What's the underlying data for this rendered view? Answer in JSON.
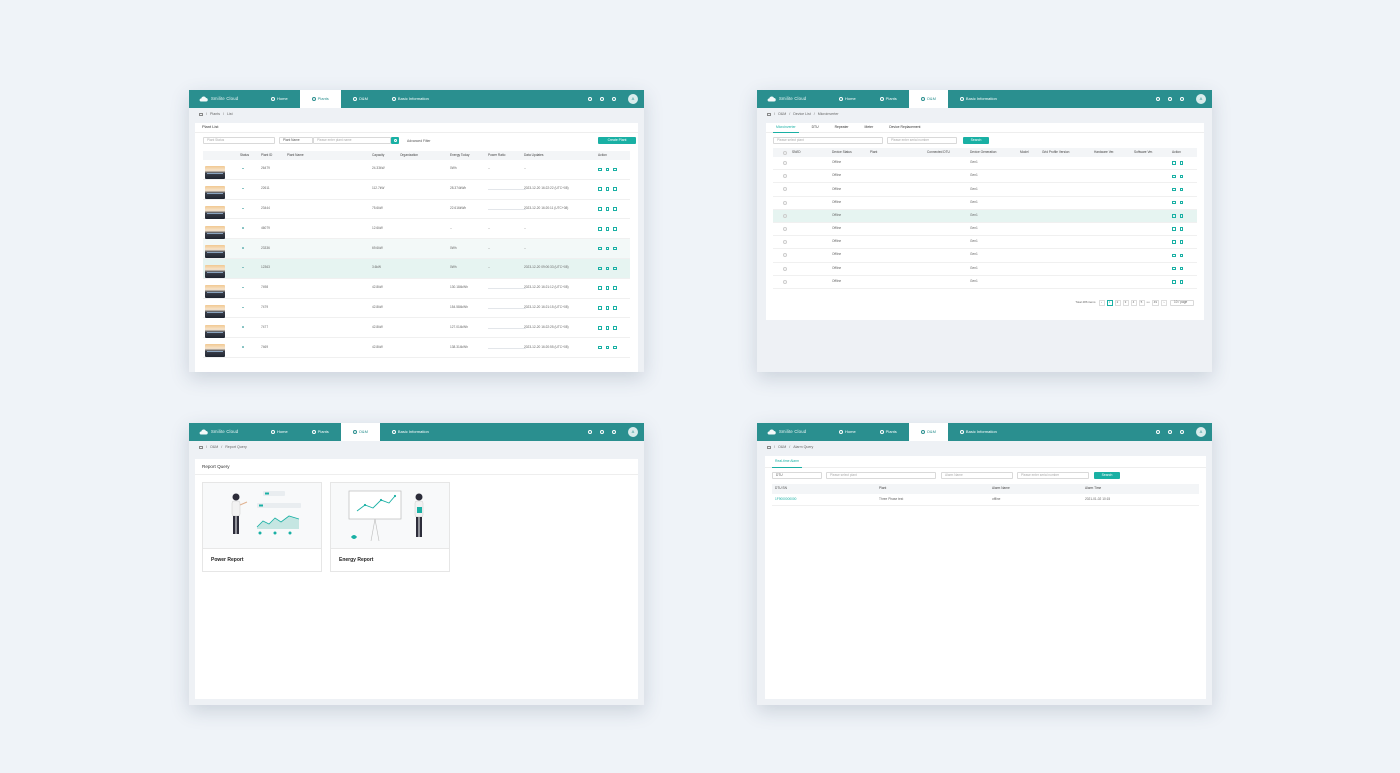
{
  "brand": {
    "name": "Smilite Cloud",
    "accent": "#2a8f8f",
    "button": "#19b0a4"
  },
  "nav": {
    "home": "Home",
    "plants": "Plants",
    "om": "O&M",
    "basic_info": "Basic Information",
    "avatar": "A"
  },
  "screen1": {
    "breadcrumb": [
      "Plants",
      "List"
    ],
    "title": "Plant List",
    "filter_status_placeholder": "Plant Status",
    "filter_field": "Plant Name",
    "search_placeholder": "Please enter plant name",
    "advanced_filter": "Advanced Filter",
    "create_button": "Create Plant",
    "columns": [
      "Status",
      "Plant ID",
      "Plant Name",
      "Capacity",
      "Organization",
      "Energy Today",
      "Power Ratio",
      "Data Updates",
      "Action"
    ],
    "rows": [
      {
        "id": "26479",
        "capacity": "24.33kW",
        "energy": "0Wh",
        "ratio": "--",
        "updates": "--"
      },
      {
        "id": "22611",
        "capacity": "112.7kW",
        "energy": "28.374kWh",
        "ratio": "",
        "updates": "2023-12-20 16:22:22 (UTC+08)"
      },
      {
        "id": "23444",
        "capacity": "75.6kW",
        "energy": "22.616kWh",
        "ratio": "",
        "updates": "2023-12-20 16:20:11 (UTC+08)"
      },
      {
        "id": "46079",
        "capacity": "12.6kW",
        "energy": "--",
        "ratio": "--",
        "updates": "--"
      },
      {
        "id": "23336",
        "capacity": "69.6kW",
        "energy": "0Wh",
        "ratio": "--",
        "updates": "--"
      },
      {
        "id": "12363",
        "capacity": "3.6kW",
        "energy": "0Wh",
        "ratio": "--",
        "updates": "2023-12-20 09:00:33 (UTC+08)"
      },
      {
        "id": "7498",
        "capacity": "42.8kW",
        "energy": "130.184kWh",
        "ratio": "",
        "updates": "2023-12-20 16:21:12 (UTC+08)"
      },
      {
        "id": "7479",
        "capacity": "42.8kW",
        "energy": "154.584kWh",
        "ratio": "",
        "updates": "2023-12-20 16:21:15 (UTC+08)"
      },
      {
        "id": "7477",
        "capacity": "42.8kW",
        "energy": "127.014kWh",
        "ratio": "",
        "updates": "2023-12-20 16:22:25 (UTC+08)"
      },
      {
        "id": "7469",
        "capacity": "42.8kW",
        "energy": "138.314kWh",
        "ratio": "",
        "updates": "2023-12-20 16:20:55 (UTC+08)"
      }
    ]
  },
  "screen2": {
    "breadcrumb": [
      "O&M",
      "Device List",
      "Microinverter"
    ],
    "tabs": [
      "Microinverter",
      "DTU",
      "Repeater",
      "Meter",
      "Device Replacement"
    ],
    "plant_placeholder": "Please select plant",
    "serial_placeholder": "Please enter serial number",
    "search": "Search",
    "columns": [
      "SN/ID",
      "Device Status",
      "Plant",
      "Connected DTU",
      "Device Generation",
      "Model",
      "Grid Profile Version",
      "Hardware Ver.",
      "Software Ver.",
      "Action"
    ],
    "status": "Offline",
    "generation": "Gen1",
    "row_count": 10,
    "total": "Total 486 items",
    "pages": [
      "1",
      "2",
      "3",
      "4",
      "5",
      "•••",
      "49"
    ],
    "page_size": "10 / page"
  },
  "screen3": {
    "breadcrumb": [
      "O&M",
      "Report Query"
    ],
    "title": "Report Query",
    "cards": [
      "Power Report",
      "Energy Report"
    ]
  },
  "screen4": {
    "breadcrumb": [
      "O&M",
      "Alarm Query"
    ],
    "tab": "Real-time Alarm",
    "filter_type": "DTU",
    "plant_placeholder": "Please select plant",
    "alarm_placeholder": "Alarm Name",
    "serial_placeholder": "Please enter serial number",
    "search": "Search",
    "columns": [
      "DTU SN",
      "Plant",
      "Alarm Name",
      "Alarm Time"
    ],
    "rows": [
      {
        "sn": "1F9000000000",
        "plant": "Three Phase test",
        "alarm": "offline",
        "time": "2021-01-02 10:15"
      }
    ]
  }
}
